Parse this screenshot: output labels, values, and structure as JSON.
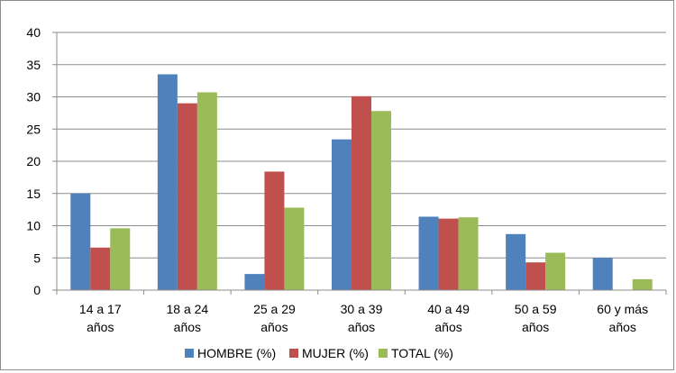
{
  "chart_data": {
    "type": "bar",
    "categories": [
      [
        "14 a 17",
        "años"
      ],
      [
        "18 a 24",
        "años"
      ],
      [
        "25 a 29",
        "años"
      ],
      [
        "30 a 39",
        "años"
      ],
      [
        "40 a 49",
        "años"
      ],
      [
        "50 a 59",
        "años"
      ],
      [
        "60 y más",
        "años"
      ]
    ],
    "series": [
      {
        "name": "HOMBRE (%)",
        "color": "#4f81bd",
        "values": [
          15.0,
          33.5,
          2.5,
          23.4,
          11.4,
          8.7,
          5.0
        ]
      },
      {
        "name": "MUJER (%)",
        "color": "#c0504d",
        "values": [
          6.6,
          29.0,
          18.4,
          30.1,
          11.1,
          4.3,
          0
        ]
      },
      {
        "name": "TOTAL (%)",
        "color": "#9bbb59",
        "values": [
          9.6,
          30.7,
          12.8,
          27.8,
          11.3,
          5.8,
          1.7
        ]
      }
    ],
    "ylim": [
      0,
      40
    ],
    "yticks": [
      0,
      5,
      10,
      15,
      20,
      25,
      30,
      35,
      40
    ],
    "grid": true,
    "legend_position": "bottom"
  }
}
